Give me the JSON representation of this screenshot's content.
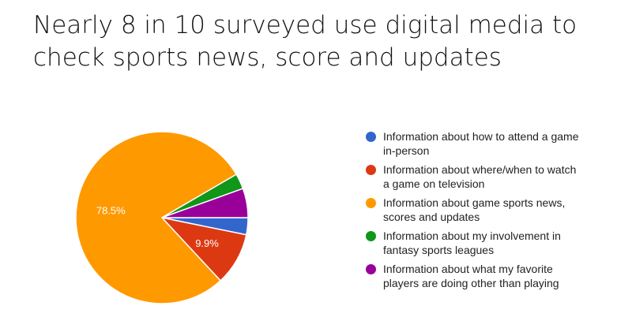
{
  "title_line1": "Nearly 8 in 10 surveyed use digital media to",
  "title_line2": "check sports news, score and updates",
  "chart_data": {
    "type": "pie",
    "legend_position": "right",
    "slices": [
      {
        "label": "Information about how to attend a game in-person",
        "value": 3.2,
        "color": "#3366cc",
        "data_label": ""
      },
      {
        "label": "Information about where/when to watch a game on television",
        "value": 9.9,
        "color": "#dc3912",
        "data_label": "9.9%"
      },
      {
        "label": "Information about game sports news, scores and updates",
        "value": 78.5,
        "color": "#ff9900",
        "data_label": "78.5%"
      },
      {
        "label": "Information about my involvement in fantasy sports leagues",
        "value": 2.9,
        "color": "#109618",
        "data_label": ""
      },
      {
        "label": "Information about what my favorite players are doing other than playing",
        "value": 5.5,
        "color": "#990099",
        "data_label": ""
      }
    ]
  }
}
